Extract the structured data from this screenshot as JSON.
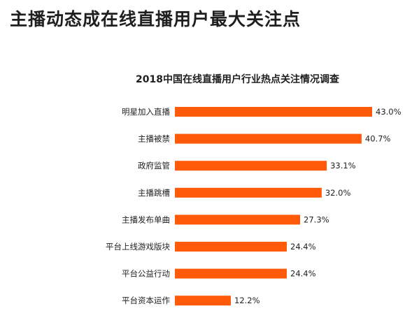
{
  "page": {
    "headline": "主播动态成在线直播用户最大关注点"
  },
  "chart_data": {
    "type": "bar",
    "orientation": "horizontal",
    "title": "2018中国在线直播用户行业热点关注情况调查",
    "categories": [
      "明星加入直播",
      "主播被禁",
      "政府监管",
      "主播跳槽",
      "主播发布单曲",
      "平台上线游戏版块",
      "平台公益行动",
      "平台资本运作"
    ],
    "values": [
      43.0,
      40.7,
      33.1,
      32.0,
      27.3,
      24.4,
      24.4,
      12.2
    ],
    "value_labels": [
      "43.0%",
      "40.7%",
      "33.1%",
      "32.0%",
      "27.3%",
      "24.4%",
      "24.4%",
      "12.2%"
    ],
    "unit": "%",
    "xlim": [
      0,
      43.0
    ],
    "grid": false,
    "legend": "none",
    "bar_color": "#ff5a0a"
  }
}
